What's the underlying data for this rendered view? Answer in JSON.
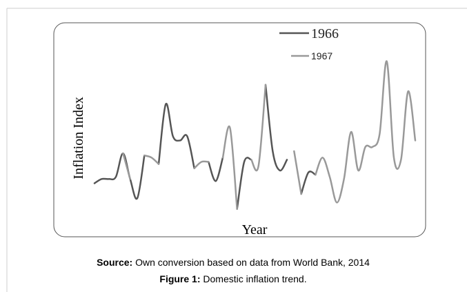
{
  "chart_data": {
    "type": "line",
    "ylabel": "Inflation Index",
    "xlabel": "Year",
    "ylim": [
      0,
      100
    ],
    "series": [
      {
        "name": "1966",
        "color": "#555555",
        "values": [
          25,
          27,
          27,
          28,
          39,
          27,
          18,
          38,
          null,
          34,
          62,
          47,
          45,
          47,
          32,
          null,
          35,
          26,
          37,
          null,
          13,
          35,
          36,
          null,
          71,
          40,
          31,
          36,
          null,
          20,
          30,
          29,
          null,
          null,
          null,
          null,
          null,
          null,
          null,
          null,
          null,
          null,
          null,
          null,
          null,
          null
        ]
      },
      {
        "name": "1967",
        "color": "#999999",
        "values": [
          null,
          null,
          null,
          null,
          39,
          27,
          null,
          38,
          37,
          34,
          null,
          null,
          null,
          null,
          32,
          35,
          35,
          null,
          37,
          51,
          13,
          null,
          36,
          33,
          71,
          null,
          null,
          null,
          40,
          20,
          null,
          29,
          37,
          28,
          16,
          27,
          49,
          31,
          42,
          42,
          48,
          82,
          37,
          36,
          68,
          45
        ]
      }
    ]
  },
  "caption": {
    "source_label": "Source:",
    "source_text": "Own conversion based on data from World Bank, 2014",
    "figure_label": "Figure 1:",
    "figure_text": "Domestic inflation trend."
  }
}
